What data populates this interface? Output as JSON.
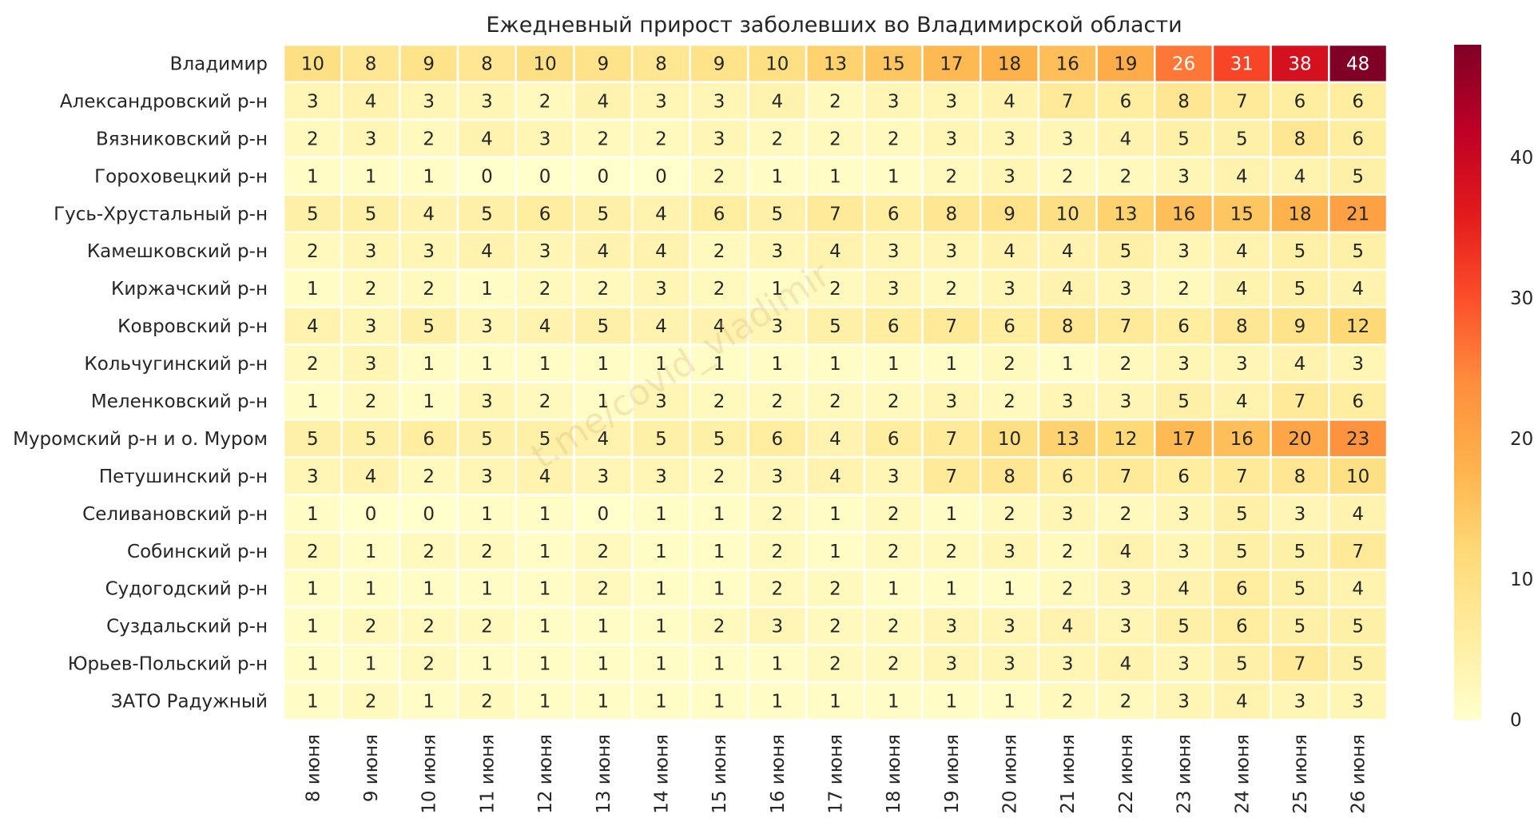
{
  "chart_data": {
    "type": "heatmap",
    "title": "Ежедневный прирост заболевших во Владимирской области",
    "xlabel": "",
    "ylabel": "",
    "columns": [
      "8 июня",
      "9 июня",
      "10 июня",
      "11 июня",
      "12 июня",
      "13 июня",
      "14 июня",
      "15 июня",
      "16 июня",
      "17 июня",
      "18 июня",
      "19 июня",
      "20 июня",
      "21 июня",
      "22 июня",
      "23 июня",
      "24 июня",
      "25 июня",
      "26 июня"
    ],
    "rows": [
      "Владимир",
      "Александровский р-н",
      "Вязниковский р-н",
      "Гороховецкий р-н",
      "Гусь-Хрустальный р-н",
      "Камешковский р-н",
      "Киржачский р-н",
      "Ковровский р-н",
      "Кольчугинский р-н",
      "Меленковский р-н",
      "Муромский р-н и о. Муром",
      "Петушинский р-н",
      "Селивановский р-н",
      "Собинский р-н",
      "Судогодский р-н",
      "Суздальский р-н",
      "Юрьев-Польский р-н",
      "ЗАТО Радужный"
    ],
    "values": [
      [
        10,
        8,
        9,
        8,
        10,
        9,
        8,
        9,
        10,
        13,
        15,
        17,
        18,
        16,
        19,
        26,
        31,
        38,
        48
      ],
      [
        3,
        4,
        3,
        3,
        2,
        4,
        3,
        3,
        4,
        2,
        3,
        3,
        4,
        7,
        6,
        8,
        7,
        6,
        6
      ],
      [
        2,
        3,
        2,
        4,
        3,
        2,
        2,
        3,
        2,
        2,
        2,
        3,
        3,
        3,
        4,
        5,
        5,
        8,
        6
      ],
      [
        1,
        1,
        1,
        0,
        0,
        0,
        0,
        2,
        1,
        1,
        1,
        2,
        3,
        2,
        2,
        3,
        4,
        4,
        5
      ],
      [
        5,
        5,
        4,
        5,
        6,
        5,
        4,
        6,
        5,
        7,
        6,
        8,
        9,
        10,
        13,
        16,
        15,
        18,
        21
      ],
      [
        2,
        3,
        3,
        4,
        3,
        4,
        4,
        2,
        3,
        4,
        3,
        3,
        4,
        4,
        5,
        3,
        4,
        5,
        5
      ],
      [
        1,
        2,
        2,
        1,
        2,
        2,
        3,
        2,
        1,
        2,
        3,
        2,
        3,
        4,
        3,
        2,
        4,
        5,
        4
      ],
      [
        4,
        3,
        5,
        3,
        4,
        5,
        4,
        4,
        3,
        5,
        6,
        7,
        6,
        8,
        7,
        6,
        8,
        9,
        12
      ],
      [
        2,
        3,
        1,
        1,
        1,
        1,
        1,
        1,
        1,
        1,
        1,
        1,
        2,
        1,
        2,
        3,
        3,
        4,
        3
      ],
      [
        1,
        2,
        1,
        3,
        2,
        1,
        3,
        2,
        2,
        2,
        2,
        3,
        2,
        3,
        3,
        5,
        4,
        7,
        6
      ],
      [
        5,
        5,
        6,
        5,
        5,
        4,
        5,
        5,
        6,
        4,
        6,
        7,
        10,
        13,
        12,
        17,
        16,
        20,
        23
      ],
      [
        3,
        4,
        2,
        3,
        4,
        3,
        3,
        2,
        3,
        4,
        3,
        7,
        8,
        6,
        7,
        6,
        7,
        8,
        10
      ],
      [
        1,
        0,
        0,
        1,
        1,
        0,
        1,
        1,
        2,
        1,
        2,
        1,
        2,
        3,
        2,
        3,
        5,
        3,
        4
      ],
      [
        2,
        1,
        2,
        2,
        1,
        2,
        1,
        1,
        2,
        1,
        2,
        2,
        3,
        2,
        4,
        3,
        5,
        5,
        7
      ],
      [
        1,
        1,
        1,
        1,
        1,
        2,
        1,
        1,
        2,
        2,
        1,
        1,
        1,
        2,
        3,
        4,
        6,
        5,
        4
      ],
      [
        1,
        2,
        2,
        2,
        1,
        1,
        1,
        2,
        3,
        2,
        2,
        3,
        3,
        4,
        3,
        5,
        6,
        5,
        5
      ],
      [
        1,
        1,
        2,
        1,
        1,
        1,
        1,
        1,
        1,
        2,
        2,
        3,
        3,
        3,
        4,
        3,
        5,
        7,
        5
      ],
      [
        1,
        2,
        1,
        2,
        1,
        1,
        1,
        1,
        1,
        1,
        1,
        1,
        1,
        2,
        2,
        3,
        4,
        3,
        3
      ]
    ],
    "colorbar": {
      "ticks": [
        0,
        10,
        20,
        30,
        40
      ],
      "vmin": 0,
      "vmax": 48
    },
    "colormap": [
      "#ffffcc",
      "#ffeda0",
      "#fed976",
      "#feb24c",
      "#fd8d3c",
      "#fc4e2a",
      "#e31a1c",
      "#bd0026",
      "#800026"
    ],
    "watermark": "t.me/covid_vladimir"
  }
}
